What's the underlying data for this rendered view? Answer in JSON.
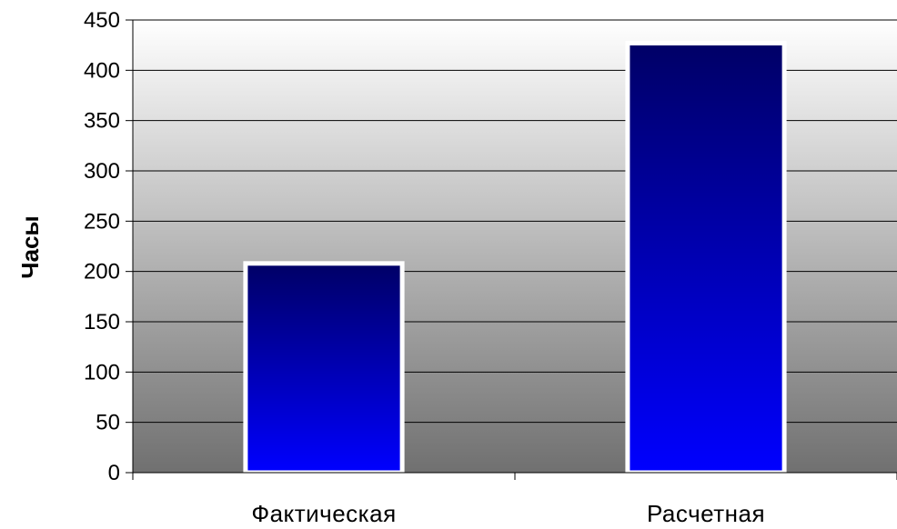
{
  "chart_data": {
    "type": "bar",
    "title": "",
    "xlabel": "",
    "ylabel": "Часы",
    "categories": [
      "Фактическая",
      "Расчетная"
    ],
    "values": [
      208,
      427
    ],
    "ylim": [
      0,
      450
    ],
    "yticks": [
      "0",
      "50",
      "100",
      "150",
      "200",
      "250",
      "300",
      "350",
      "400",
      "450"
    ],
    "grid": true,
    "legend": "none",
    "colors": {
      "bar_top": "#000066",
      "bar_bottom": "#0000ff",
      "bar_border": "#ffffff",
      "plot_bg_top": "#ffffff",
      "plot_bg_bottom": "#707070",
      "gridline": "#000000"
    }
  }
}
